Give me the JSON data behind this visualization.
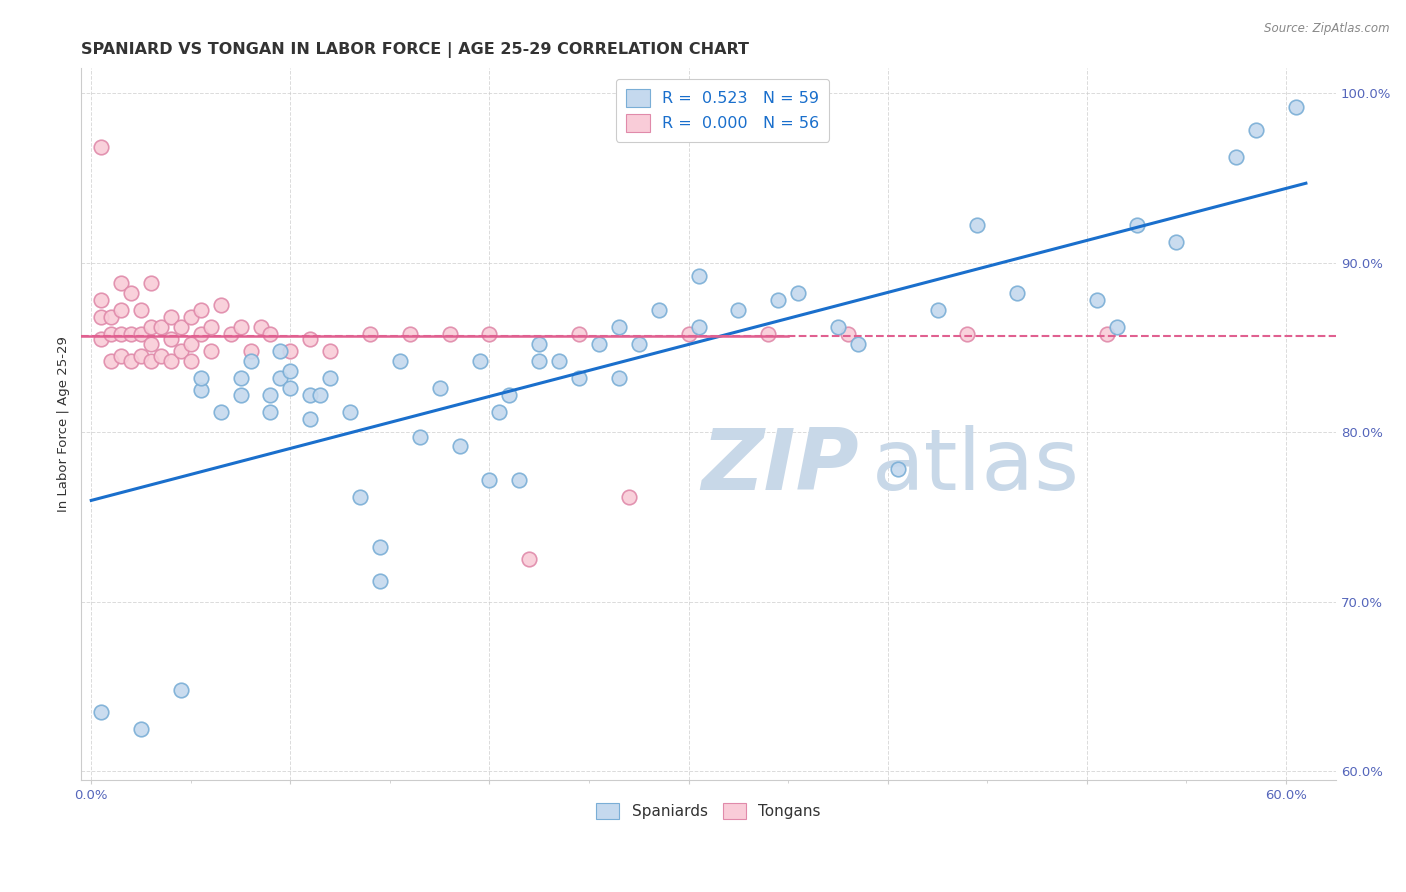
{
  "title": "SPANIARD VS TONGAN IN LABOR FORCE | AGE 25-29 CORRELATION CHART",
  "source": "Source: ZipAtlas.com",
  "ylabel": "In Labor Force | Age 25-29",
  "xlim": [
    -0.005,
    0.625
  ],
  "ylim": [
    0.595,
    1.015
  ],
  "ytick_positions": [
    0.6,
    0.7,
    0.8,
    0.9,
    1.0
  ],
  "yticklabels": [
    "60.0%",
    "70.0%",
    "80.0%",
    "90.0%",
    "100.0%"
  ],
  "xtick_positions": [
    0.0,
    0.1,
    0.2,
    0.3,
    0.4,
    0.5,
    0.6
  ],
  "xticklabels": [
    "0.0%",
    "",
    "",
    "",
    "",
    "",
    "60.0%"
  ],
  "spaniard_color_fill": "#c5d9ee",
  "spaniard_color_edge": "#7aaed6",
  "tongan_color_fill": "#f9ccd8",
  "tongan_color_edge": "#e08aaa",
  "spaniard_line_color": "#1a6fcc",
  "tongan_line_color": "#e06090",
  "legend_r_spaniard": "R =  0.523",
  "legend_n_spaniard": "N = 59",
  "legend_r_tongan": "R =  0.000",
  "legend_n_tongan": "N = 56",
  "watermark_zip": "ZIP",
  "watermark_atlas": "atlas",
  "watermark_color": "#c8d8e8",
  "background_color": "#ffffff",
  "grid_color": "#cccccc",
  "tick_color": "#5566bb",
  "title_fontsize": 11.5,
  "label_fontsize": 9.5,
  "tick_fontsize": 9.5,
  "spaniard_x": [
    0.005,
    0.025,
    0.045,
    0.055,
    0.055,
    0.065,
    0.075,
    0.075,
    0.08,
    0.09,
    0.09,
    0.095,
    0.095,
    0.1,
    0.1,
    0.11,
    0.11,
    0.115,
    0.12,
    0.13,
    0.135,
    0.145,
    0.145,
    0.155,
    0.165,
    0.175,
    0.185,
    0.195,
    0.2,
    0.205,
    0.21,
    0.215,
    0.225,
    0.225,
    0.235,
    0.245,
    0.255,
    0.265,
    0.265,
    0.275,
    0.285,
    0.305,
    0.305,
    0.325,
    0.345,
    0.355,
    0.375,
    0.385,
    0.405,
    0.425,
    0.445,
    0.465,
    0.505,
    0.515,
    0.525,
    0.545,
    0.575,
    0.585,
    0.605
  ],
  "spaniard_y": [
    0.635,
    0.625,
    0.648,
    0.825,
    0.832,
    0.812,
    0.822,
    0.832,
    0.842,
    0.812,
    0.822,
    0.832,
    0.848,
    0.826,
    0.836,
    0.808,
    0.822,
    0.822,
    0.832,
    0.812,
    0.762,
    0.732,
    0.712,
    0.842,
    0.797,
    0.826,
    0.792,
    0.842,
    0.772,
    0.812,
    0.822,
    0.772,
    0.842,
    0.852,
    0.842,
    0.832,
    0.852,
    0.832,
    0.862,
    0.852,
    0.872,
    0.862,
    0.892,
    0.872,
    0.878,
    0.882,
    0.862,
    0.852,
    0.778,
    0.872,
    0.922,
    0.882,
    0.878,
    0.862,
    0.922,
    0.912,
    0.962,
    0.978,
    0.992
  ],
  "tongan_x": [
    0.005,
    0.005,
    0.005,
    0.005,
    0.01,
    0.01,
    0.01,
    0.015,
    0.015,
    0.015,
    0.015,
    0.02,
    0.02,
    0.02,
    0.025,
    0.025,
    0.025,
    0.03,
    0.03,
    0.03,
    0.03,
    0.035,
    0.035,
    0.04,
    0.04,
    0.04,
    0.045,
    0.045,
    0.05,
    0.05,
    0.05,
    0.055,
    0.055,
    0.06,
    0.06,
    0.065,
    0.07,
    0.075,
    0.08,
    0.085,
    0.09,
    0.1,
    0.11,
    0.12,
    0.14,
    0.16,
    0.18,
    0.2,
    0.22,
    0.245,
    0.27,
    0.3,
    0.34,
    0.38,
    0.44,
    0.51
  ],
  "tongan_y": [
    0.855,
    0.868,
    0.878,
    0.968,
    0.842,
    0.858,
    0.868,
    0.845,
    0.858,
    0.872,
    0.888,
    0.842,
    0.858,
    0.882,
    0.845,
    0.858,
    0.872,
    0.842,
    0.852,
    0.862,
    0.888,
    0.845,
    0.862,
    0.842,
    0.855,
    0.868,
    0.848,
    0.862,
    0.842,
    0.852,
    0.868,
    0.858,
    0.872,
    0.848,
    0.862,
    0.875,
    0.858,
    0.862,
    0.848,
    0.862,
    0.858,
    0.848,
    0.855,
    0.848,
    0.858,
    0.858,
    0.858,
    0.858,
    0.725,
    0.858,
    0.762,
    0.858,
    0.858,
    0.858,
    0.858,
    0.858
  ]
}
